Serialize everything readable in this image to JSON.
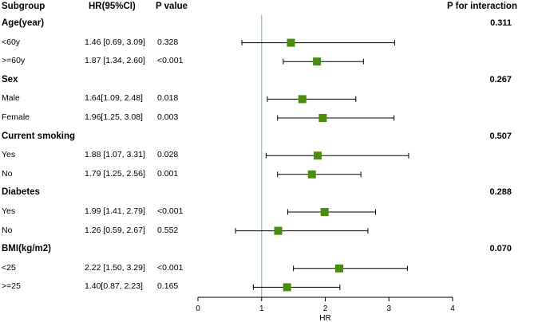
{
  "headers": {
    "subgroup": "Subgroup",
    "hr": "HR(95%CI)",
    "p": "P value",
    "p_interaction": "P for interaction"
  },
  "chart_data": {
    "type": "forest",
    "xlabel": "HR",
    "xlim": [
      0,
      4
    ],
    "xticks": [
      0,
      1,
      2,
      3,
      4
    ],
    "reference_line": 1,
    "colors": {
      "marker": "#4a8c0c",
      "reference": "#7fb6d9"
    },
    "groups": [
      {
        "name": "Age(year)",
        "p_interaction": "0.311",
        "rows": [
          {
            "label": "<60y",
            "text": "1.46 [0.69, 3.09]",
            "p": "0.328",
            "hr": 1.46,
            "lo": 0.69,
            "hi": 3.09
          },
          {
            "label": ">=60y",
            "text": "1.87 [1.34, 2.60]",
            "p": "<0.001",
            "hr": 1.87,
            "lo": 1.34,
            "hi": 2.6
          }
        ]
      },
      {
        "name": "Sex",
        "p_interaction": "0.267",
        "rows": [
          {
            "label": "Male",
            "text": "1.64[1.09, 2.48]",
            "p": "0.018",
            "hr": 1.64,
            "lo": 1.09,
            "hi": 2.48
          },
          {
            "label": "Female",
            "text": "1.96[1.25, 3.08]",
            "p": "0.003",
            "hr": 1.96,
            "lo": 1.25,
            "hi": 3.08
          }
        ]
      },
      {
        "name": "Current smoking",
        "p_interaction": "0.507",
        "rows": [
          {
            "label": "Yes",
            "text": "1.88 [1.07, 3.31]",
            "p": "0.028",
            "hr": 1.88,
            "lo": 1.07,
            "hi": 3.31
          },
          {
            "label": "No",
            "text": "1.79 [1.25, 2.56]",
            "p": "0.001",
            "hr": 1.79,
            "lo": 1.25,
            "hi": 2.56
          }
        ]
      },
      {
        "name": "Diabetes",
        "p_interaction": "0.288",
        "rows": [
          {
            "label": "Yes",
            "text": "1.99 [1.41, 2.79]",
            "p": "<0.001",
            "hr": 1.99,
            "lo": 1.41,
            "hi": 2.79
          },
          {
            "label": "No",
            "text": "1.26 [0.59, 2.67]",
            "p": "0.552",
            "hr": 1.26,
            "lo": 0.59,
            "hi": 2.67
          }
        ]
      },
      {
        "name": "BMI(kg/m2)",
        "p_interaction": "0.070",
        "rows": [
          {
            "label": "<25",
            "text": "2.22 [1.50, 3.29]",
            "p": "<0.001",
            "hr": 2.22,
            "lo": 1.5,
            "hi": 3.29
          },
          {
            "label": ">=25",
            "text": "1.40[0.87, 2.23]",
            "p": "0.165",
            "hr": 1.4,
            "lo": 0.87,
            "hi": 2.23
          }
        ]
      }
    ]
  }
}
